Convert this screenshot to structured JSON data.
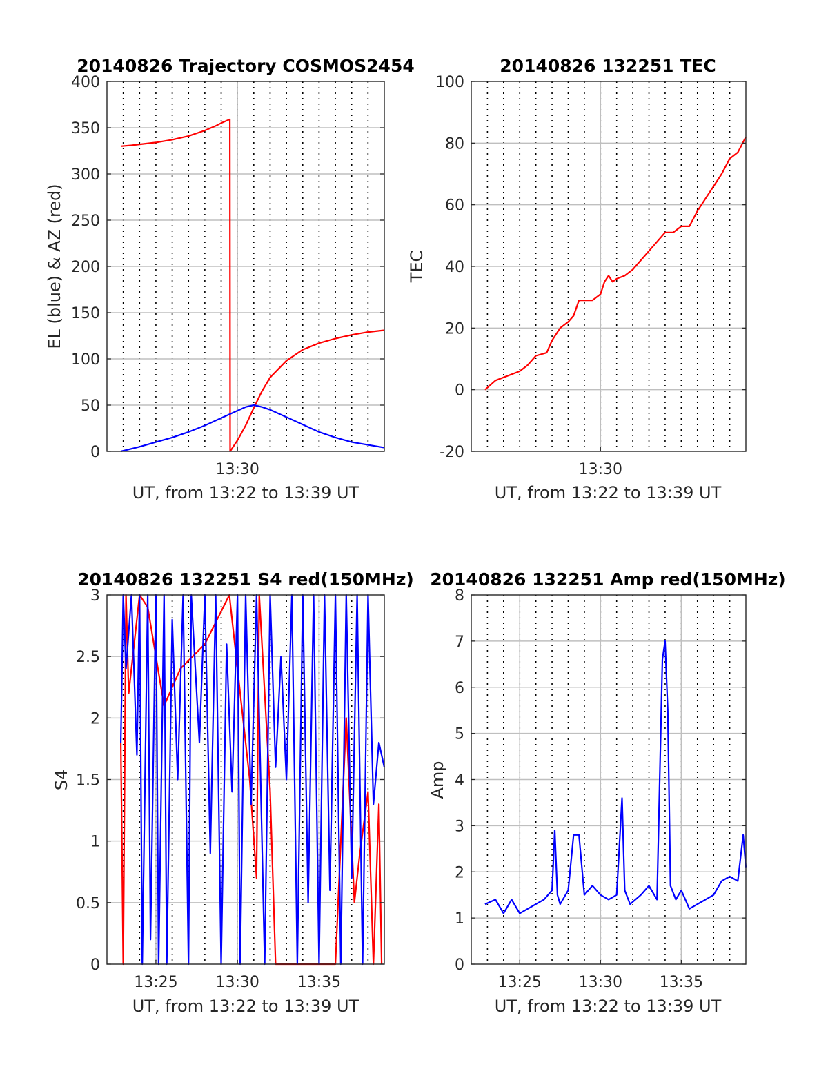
{
  "figure": {
    "xlabel_common": "UT, from 13:22 to 13:39 UT",
    "colors": {
      "red": "#ff0000",
      "blue": "#0000ff",
      "grid": "#bfbfbf",
      "axes": "#262626"
    }
  },
  "chart_data": [
    {
      "id": "trajectory",
      "type": "line",
      "title": "20140826 Trajectory COSMOS2454",
      "xlabel": "UT, from 13:22 to 13:39 UT",
      "ylabel": "EL (blue) & AZ (red)",
      "xlim": [
        "13:22:00",
        "13:39:00"
      ],
      "ylim": [
        0,
        400
      ],
      "yticks": [
        0,
        50,
        100,
        150,
        200,
        250,
        300,
        350,
        400
      ],
      "xticks": [
        "13:30"
      ],
      "grid": "dotted minute lines, major on labelled ticks",
      "series": [
        {
          "color": "#ff0000",
          "x": [
            "13:22:51",
            "13:23:30",
            "13:24:00",
            "13:25:00",
            "13:26:00",
            "13:27:00",
            "13:28:00",
            "13:28:40",
            "13:29:00",
            "13:29:32",
            "13:29:33",
            "13:30:00",
            "13:30:30",
            "13:31:00",
            "13:31:30",
            "13:32:00",
            "13:33:00",
            "13:34:00",
            "13:35:00",
            "13:36:00",
            "13:37:00",
            "13:38:00",
            "13:39:00"
          ],
          "values": [
            330,
            331,
            332,
            334,
            337,
            341,
            347,
            352,
            355,
            359,
            0,
            12,
            28,
            47,
            65,
            80,
            98,
            110,
            117,
            122,
            126,
            129,
            131
          ]
        },
        {
          "color": "#0000ff",
          "x": [
            "13:22:51",
            "13:24:00",
            "13:25:00",
            "13:26:00",
            "13:27:00",
            "13:28:00",
            "13:29:00",
            "13:30:00",
            "13:30:30",
            "13:31:00",
            "13:31:30",
            "13:32:00",
            "13:33:00",
            "13:34:00",
            "13:35:00",
            "13:36:00",
            "13:37:00",
            "13:38:00",
            "13:39:00"
          ],
          "values": [
            0,
            5,
            10,
            15,
            21,
            28,
            36,
            44,
            48,
            50,
            48,
            45,
            37,
            29,
            21,
            15,
            10,
            7,
            4
          ]
        }
      ]
    },
    {
      "id": "tec",
      "type": "line",
      "title": "20140826 132251 TEC",
      "xlabel": "UT, from 13:22 to 13:39 UT",
      "ylabel": "TEC",
      "xlim": [
        "13:22:00",
        "13:39:00"
      ],
      "ylim": [
        -20,
        100
      ],
      "yticks": [
        -20,
        0,
        20,
        40,
        60,
        80,
        100
      ],
      "xticks": [
        "13:30"
      ],
      "series": [
        {
          "color": "#ff0000",
          "x": [
            "13:22:51",
            "13:23:30",
            "13:24:00",
            "13:25:00",
            "13:25:30",
            "13:26:00",
            "13:26:40",
            "13:27:00",
            "13:27:30",
            "13:28:00",
            "13:28:20",
            "13:28:40",
            "13:29:00",
            "13:29:30",
            "13:30:00",
            "13:30:15",
            "13:30:30",
            "13:30:45",
            "13:31:00",
            "13:31:30",
            "13:32:00",
            "13:32:40",
            "13:33:00",
            "13:33:30",
            "13:34:00",
            "13:34:30",
            "13:35:00",
            "13:35:30",
            "13:36:00",
            "13:36:30",
            "13:37:00",
            "13:37:30",
            "13:38:00",
            "13:38:30",
            "13:39:00"
          ],
          "values": [
            0,
            3,
            4,
            6,
            8,
            11,
            12,
            16,
            20,
            22,
            24,
            29,
            29,
            29,
            31,
            35,
            37,
            35,
            36,
            37,
            39,
            43,
            45,
            48,
            51,
            51,
            53,
            53,
            58,
            62,
            66,
            70,
            75,
            77,
            82
          ]
        }
      ]
    },
    {
      "id": "s4",
      "type": "line",
      "title": "20140826 132251 S4 red(150MHz)",
      "xlabel": "UT, from 13:22 to 13:39 UT",
      "ylabel": "S4",
      "xlim": [
        "13:22:00",
        "13:39:00"
      ],
      "ylim": [
        0,
        3
      ],
      "yticks": [
        0,
        0.5,
        1,
        1.5,
        2,
        2.5,
        3
      ],
      "xticks": [
        "13:25",
        "13:30",
        "13:35"
      ],
      "series": [
        {
          "color": "#ff0000",
          "x": [
            "13:22:51",
            "13:23:00",
            "13:23:10",
            "13:23:20",
            "13:24:00",
            "13:24:30",
            "13:25:30",
            "13:26:30",
            "13:28:00",
            "13:29:30",
            "13:30:45",
            "13:31:10",
            "13:31:20",
            "13:32:00",
            "13:32:20",
            "13:33:30",
            "13:35:00",
            "13:36:00",
            "13:36:40",
            "13:37:10",
            "13:37:30",
            "13:38:00",
            "13:38:20",
            "13:38:40",
            "13:38:50"
          ],
          "values": [
            1.8,
            0,
            3,
            2.2,
            3,
            2.9,
            2.1,
            2.4,
            2.6,
            3,
            1.5,
            0.7,
            3,
            1.4,
            0,
            0,
            0,
            0,
            2.0,
            0.5,
            0.9,
            1.4,
            0,
            1.3,
            0
          ]
        },
        {
          "color": "#0000ff",
          "x": [
            "13:22:51",
            "13:23:00",
            "13:23:10",
            "13:23:30",
            "13:23:50",
            "13:24:00",
            "13:24:10",
            "13:24:30",
            "13:24:40",
            "13:25:00",
            "13:25:10",
            "13:25:30",
            "13:25:40",
            "13:26:00",
            "13:26:20",
            "13:26:40",
            "13:27:00",
            "13:27:10",
            "13:27:40",
            "13:28:00",
            "13:28:20",
            "13:28:40",
            "13:29:00",
            "13:29:20",
            "13:29:40",
            "13:30:00",
            "13:30:10",
            "13:30:30",
            "13:30:50",
            "13:31:10",
            "13:31:40",
            "13:32:00",
            "13:32:20",
            "13:32:40",
            "13:33:00",
            "13:33:20",
            "13:33:40",
            "13:34:00",
            "13:34:20",
            "13:34:40",
            "13:35:00",
            "13:35:20",
            "13:35:40",
            "13:36:00",
            "13:36:20",
            "13:36:40",
            "13:37:00",
            "13:37:20",
            "13:37:40",
            "13:38:00",
            "13:38:20",
            "13:38:40",
            "13:39:00"
          ],
          "values": [
            1.8,
            3,
            2.4,
            3,
            1.7,
            3,
            0,
            3,
            0.2,
            3,
            0,
            3,
            0,
            2.8,
            1.5,
            3,
            0,
            3,
            1.8,
            3,
            0.9,
            3,
            0,
            2.6,
            1.4,
            3,
            0,
            3,
            1.3,
            3,
            0,
            3,
            1.6,
            2.5,
            1.5,
            3,
            0,
            3,
            0.5,
            3,
            0,
            3,
            0.6,
            3,
            0,
            3,
            0.7,
            3,
            0,
            3,
            1.3,
            1.8,
            1.6
          ]
        }
      ]
    },
    {
      "id": "amp",
      "type": "line",
      "title": "20140826 132251 Amp red(150MHz)",
      "xlabel": "UT, from 13:22 to 13:39 UT",
      "ylabel": "Amp",
      "xlim": [
        "13:22:00",
        "13:39:00"
      ],
      "ylim": [
        0,
        8
      ],
      "yticks": [
        0,
        1,
        2,
        3,
        4,
        5,
        6,
        7,
        8
      ],
      "xticks": [
        "13:25",
        "13:30",
        "13:35"
      ],
      "series": [
        {
          "color": "#0000ff",
          "x": [
            "13:22:51",
            "13:23:30",
            "13:24:00",
            "13:24:30",
            "13:25:00",
            "13:25:30",
            "13:26:00",
            "13:26:30",
            "13:27:00",
            "13:27:10",
            "13:27:20",
            "13:27:30",
            "13:28:00",
            "13:28:20",
            "13:28:40",
            "13:29:00",
            "13:29:30",
            "13:30:00",
            "13:30:30",
            "13:31:00",
            "13:31:20",
            "13:31:30",
            "13:31:50",
            "13:32:30",
            "13:33:00",
            "13:33:30",
            "13:33:50",
            "13:34:00",
            "13:34:10",
            "13:34:20",
            "13:34:40",
            "13:35:00",
            "13:35:30",
            "13:36:00",
            "13:36:30",
            "13:37:00",
            "13:37:30",
            "13:38:00",
            "13:38:30",
            "13:38:50",
            "13:39:00"
          ],
          "values": [
            1.3,
            1.4,
            1.1,
            1.4,
            1.1,
            1.2,
            1.3,
            1.4,
            1.6,
            2.9,
            1.5,
            1.3,
            1.6,
            2.8,
            2.8,
            1.5,
            1.7,
            1.5,
            1.4,
            1.5,
            3.6,
            1.6,
            1.3,
            1.5,
            1.7,
            1.4,
            6.6,
            7.0,
            5.5,
            1.7,
            1.4,
            1.6,
            1.2,
            1.3,
            1.4,
            1.5,
            1.8,
            1.9,
            1.8,
            2.8,
            2.1
          ]
        }
      ]
    }
  ]
}
